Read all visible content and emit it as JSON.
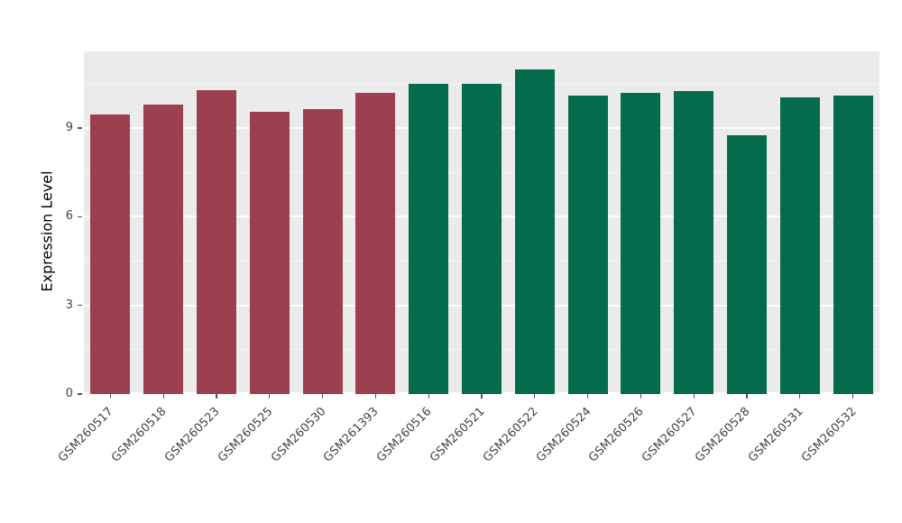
{
  "chart_data": {
    "type": "bar",
    "title": "",
    "xlabel": "",
    "ylabel": "Expression Level",
    "ylim": [
      0,
      11.6
    ],
    "yticks": [
      0,
      3,
      6,
      9
    ],
    "minor_yticks": [
      1.5,
      4.5,
      7.5,
      10.5
    ],
    "grid": "on",
    "legend": "none",
    "panel_background": "#ebebeb",
    "gridline_color": "#ffffff",
    "categories": [
      "GSM260517",
      "GSM260518",
      "GSM260523",
      "GSM260525",
      "GSM260530",
      "GSM261393",
      "GSM260516",
      "GSM260521",
      "GSM260522",
      "GSM260524",
      "GSM260526",
      "GSM260527",
      "GSM260528",
      "GSM260531",
      "GSM260532"
    ],
    "values": [
      9.45,
      9.8,
      10.3,
      9.55,
      9.65,
      10.2,
      10.5,
      10.5,
      11.0,
      10.1,
      10.2,
      10.25,
      8.75,
      10.05,
      10.1
    ],
    "groups": [
      "group1",
      "group1",
      "group1",
      "group1",
      "group1",
      "group1",
      "group2",
      "group2",
      "group2",
      "group2",
      "group2",
      "group2",
      "group2",
      "group2",
      "group2"
    ],
    "colors": {
      "group1": "#9c3f4e",
      "group2": "#046b4c"
    }
  }
}
